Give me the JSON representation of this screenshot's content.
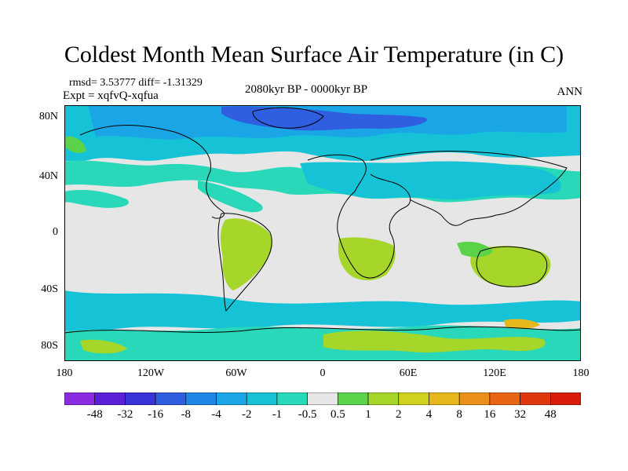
{
  "title": "Coldest Month Mean Surface Air Temperature (in C)",
  "stats": "rmsd= 3.53777 diff= -1.31329",
  "experiment": "Expt = xqfvQ-xqfua",
  "period": "2080kyr BP - 0000kyr BP",
  "season": "ANN",
  "lat_labels": [
    "80N",
    "40N",
    "0",
    "40S",
    "80S"
  ],
  "lon_labels": [
    "180",
    "120W",
    "60W",
    "0",
    "60E",
    "120E",
    "180"
  ],
  "colorbar": {
    "labels": [
      "-48",
      "-32",
      "-16",
      "-8",
      "-4",
      "-2",
      "-1",
      "-0.5",
      "0.5",
      "1",
      "2",
      "4",
      "8",
      "16",
      "32",
      "48"
    ],
    "colors": [
      "#8a2be2",
      "#5a1fd6",
      "#3a33d8",
      "#2f5fe0",
      "#1f86e6",
      "#1aa6e6",
      "#16c3d6",
      "#28d8b8",
      "#e6e6e6",
      "#5ad24a",
      "#a6d62a",
      "#cfd21e",
      "#e6b81c",
      "#eb9018",
      "#e86414",
      "#e0380e",
      "#d81e0a"
    ]
  }
}
